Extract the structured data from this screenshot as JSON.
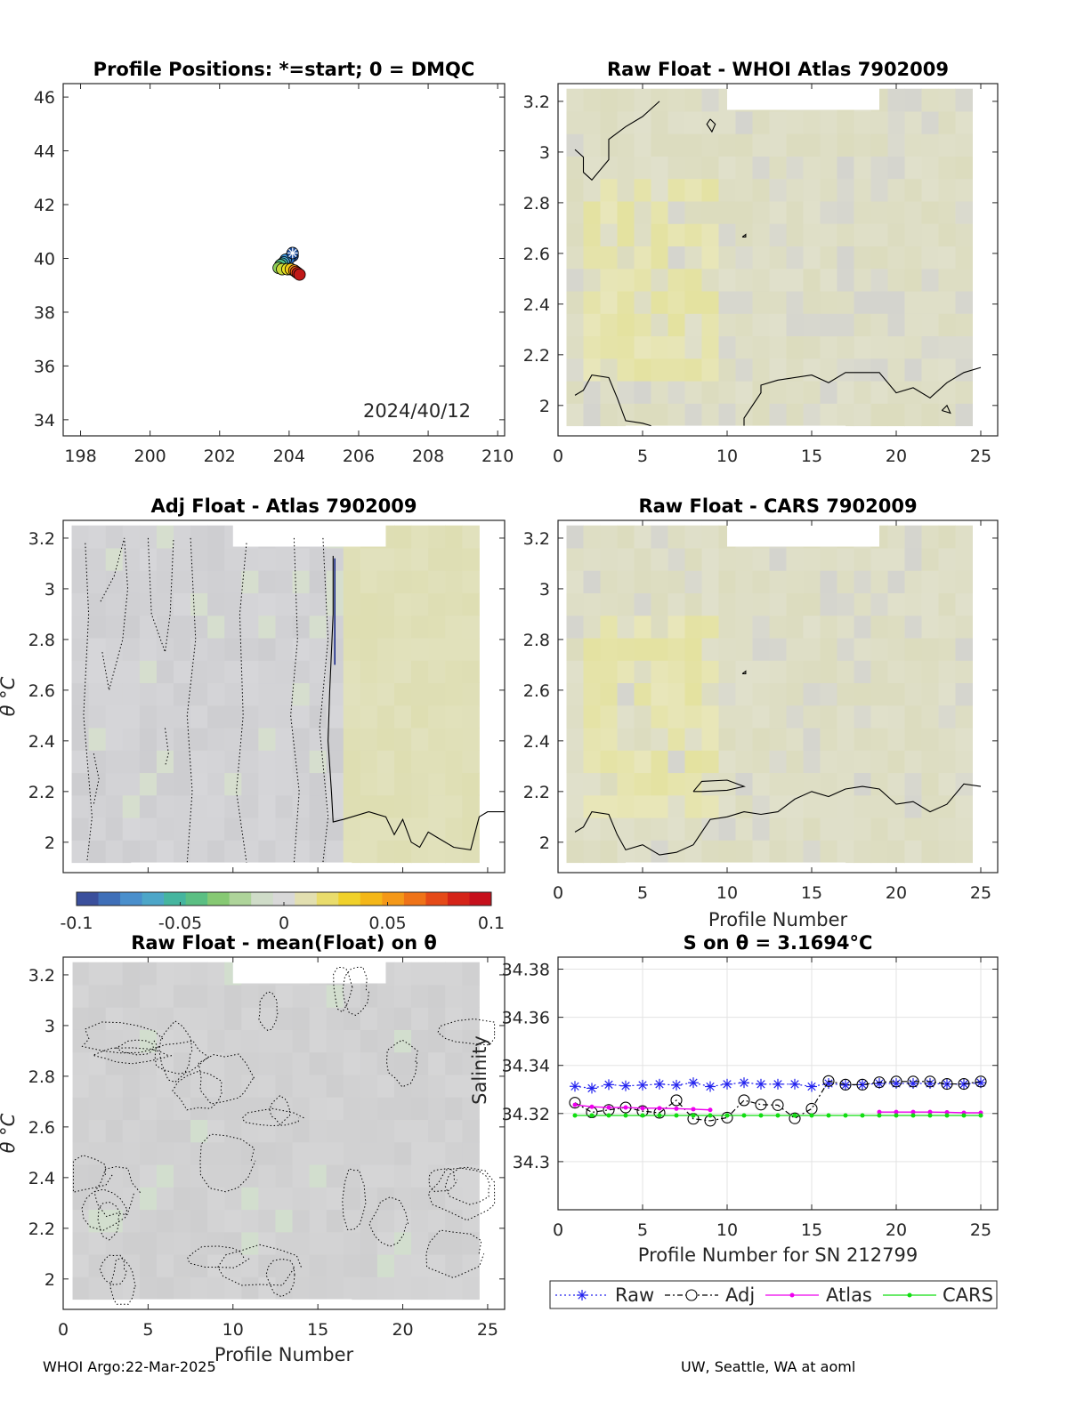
{
  "footer": {
    "left": "WHOI Argo:22-Mar-2025",
    "right": "UW, Seattle, WA at aoml"
  },
  "colorbar": {
    "ticks": [
      "-0.1",
      "-0.05",
      "0",
      "0.05",
      "0.1"
    ]
  },
  "chart_data": [
    {
      "id": "positions",
      "type": "scatter",
      "title": "Profile Positions: *=start; 0 = DMQC",
      "annotation": "2024/40/12",
      "xlim": [
        197.5,
        210.2
      ],
      "ylim": [
        33.4,
        46.5
      ],
      "xticks": [
        "198",
        "200",
        "202",
        "204",
        "206",
        "208",
        "210"
      ],
      "yticks": [
        "34",
        "36",
        "38",
        "40",
        "42",
        "44",
        "46"
      ],
      "points": [
        {
          "x": 204.1,
          "y": 40.1,
          "color": "#1f4e9a"
        },
        {
          "x": 204.0,
          "y": 40.0,
          "color": "#2c6fbd"
        },
        {
          "x": 203.9,
          "y": 39.95,
          "color": "#3a8fd0"
        },
        {
          "x": 203.85,
          "y": 39.85,
          "color": "#4aa8d8"
        },
        {
          "x": 203.8,
          "y": 39.8,
          "color": "#3fb8b0"
        },
        {
          "x": 203.75,
          "y": 39.75,
          "color": "#54c28a"
        },
        {
          "x": 203.7,
          "y": 39.65,
          "color": "#8ccf5a"
        },
        {
          "x": 203.8,
          "y": 39.6,
          "color": "#c8d83a"
        },
        {
          "x": 203.95,
          "y": 39.6,
          "color": "#e8e020"
        },
        {
          "x": 204.05,
          "y": 39.6,
          "color": "#f2c818"
        },
        {
          "x": 204.15,
          "y": 39.55,
          "color": "#f09018"
        },
        {
          "x": 204.2,
          "y": 39.5,
          "color": "#e85a14"
        },
        {
          "x": 204.25,
          "y": 39.45,
          "color": "#d0221a"
        },
        {
          "x": 204.3,
          "y": 39.4,
          "color": "#c01818"
        }
      ],
      "start_marker": {
        "x": 204.1,
        "y": 40.2
      }
    },
    {
      "id": "raw-whoi",
      "type": "heatmap",
      "title": "Raw Float - WHOI Atlas  7902009",
      "xlim": [
        0,
        26
      ],
      "ylim": [
        1.88,
        3.27
      ],
      "xticks": [
        "0",
        "5",
        "10",
        "15",
        "20",
        "25"
      ],
      "yticks": [
        "2",
        "2.2",
        "2.4",
        "2.6",
        "2.8",
        "3",
        "3.2"
      ],
      "style": "yellow-gray"
    },
    {
      "id": "adj-atlas",
      "type": "heatmap",
      "title": "Adj Float - Atlas  7902009",
      "ylabel": "θ °C",
      "xlim": [
        0,
        26
      ],
      "ylim": [
        1.88,
        3.27
      ],
      "yticks": [
        "2",
        "2.2",
        "2.4",
        "2.6",
        "2.8",
        "3",
        "3.2"
      ],
      "style": "adjusted"
    },
    {
      "id": "raw-cars",
      "type": "heatmap",
      "title": "Raw Float - CARS  7902009",
      "xlabel": "Profile Number",
      "xlim": [
        0,
        26
      ],
      "ylim": [
        1.88,
        3.27
      ],
      "xticks": [
        "0",
        "5",
        "10",
        "15",
        "20",
        "25"
      ],
      "yticks": [
        "2",
        "2.2",
        "2.4",
        "2.6",
        "2.8",
        "3",
        "3.2"
      ],
      "style": "yellow-gray"
    },
    {
      "id": "raw-mean",
      "type": "heatmap",
      "title": "Raw Float - mean(Float) on θ",
      "xlabel": "Profile Number",
      "ylabel": "θ °C",
      "xlim": [
        0,
        26
      ],
      "ylim": [
        1.88,
        3.27
      ],
      "xticks": [
        "0",
        "5",
        "10",
        "15",
        "20",
        "25"
      ],
      "yticks": [
        "2",
        "2.2",
        "2.4",
        "2.6",
        "2.8",
        "3",
        "3.2"
      ],
      "style": "gray"
    },
    {
      "id": "salinity",
      "type": "line",
      "title": "S on θ = 3.1694°C",
      "xlabel": "Profile Number for SN 212799",
      "ylabel": "Salinity",
      "xlim": [
        0,
        26
      ],
      "ylim": [
        34.28,
        34.385
      ],
      "xticks": [
        "0",
        "5",
        "10",
        "15",
        "20",
        "25"
      ],
      "yticks": [
        "34.3",
        "34.32",
        "34.34",
        "34.36",
        "34.38"
      ],
      "grid": true,
      "legend_position": "bottom",
      "series": [
        {
          "name": "Raw",
          "color": "#2222ee",
          "marker": "*",
          "x": [
            1,
            2,
            3,
            4,
            5,
            6,
            7,
            8,
            9,
            10,
            11,
            12,
            13,
            14,
            15,
            16,
            17,
            18,
            19,
            20,
            21,
            22,
            23,
            24,
            25
          ],
          "values": [
            34.3313,
            34.3305,
            34.332,
            34.3315,
            34.3318,
            34.3322,
            34.3318,
            34.3328,
            34.3312,
            34.3322,
            34.3328,
            34.3322,
            34.3322,
            34.3322,
            34.3312,
            34.3325,
            34.3318,
            34.332,
            34.3325,
            34.3325,
            34.3325,
            34.3325,
            34.3322,
            34.3322,
            34.3328
          ]
        },
        {
          "name": "Adj",
          "color": "#000000",
          "marker": "o",
          "x": [
            1,
            2,
            3,
            4,
            5,
            6,
            7,
            8,
            9,
            10,
            11,
            12,
            13,
            14,
            15,
            16,
            17,
            18,
            19,
            20,
            21,
            22,
            23,
            24,
            25
          ],
          "values": [
            34.3245,
            34.3205,
            34.3215,
            34.3225,
            34.321,
            34.3203,
            34.3255,
            34.3178,
            34.317,
            34.3183,
            34.3255,
            34.3237,
            34.3235,
            34.318,
            34.322,
            34.3335,
            34.332,
            34.332,
            34.333,
            34.3333,
            34.3333,
            34.3333,
            34.3323,
            34.3323,
            34.3333
          ]
        },
        {
          "name": "Atlas",
          "color": "#ee00ee",
          "marker": ".",
          "x": [
            1,
            2,
            3,
            4,
            5,
            6,
            7,
            8,
            9,
            19,
            20,
            21,
            22,
            23,
            24,
            25
          ],
          "values": [
            34.3236,
            34.3228,
            34.3225,
            34.3225,
            34.3222,
            34.3222,
            34.322,
            34.3218,
            34.3215,
            34.3206,
            34.3206,
            34.3206,
            34.3206,
            34.3205,
            34.3203,
            34.3203
          ]
        },
        {
          "name": "CARS",
          "color": "#11dd11",
          "marker": ".",
          "x": [
            1,
            2,
            3,
            4,
            5,
            6,
            7,
            8,
            9,
            10,
            11,
            12,
            13,
            14,
            15,
            16,
            17,
            18,
            19,
            20,
            21,
            22,
            23,
            24,
            25
          ],
          "values": [
            34.3192,
            34.3192,
            34.3192,
            34.3192,
            34.3192,
            34.3192,
            34.3192,
            34.3192,
            34.3192,
            34.3192,
            34.3192,
            34.3192,
            34.3192,
            34.3192,
            34.3192,
            34.3192,
            34.3192,
            34.3192,
            34.3192,
            34.3192,
            34.3192,
            34.3192,
            34.3192,
            34.3192,
            34.3192
          ]
        }
      ]
    }
  ]
}
